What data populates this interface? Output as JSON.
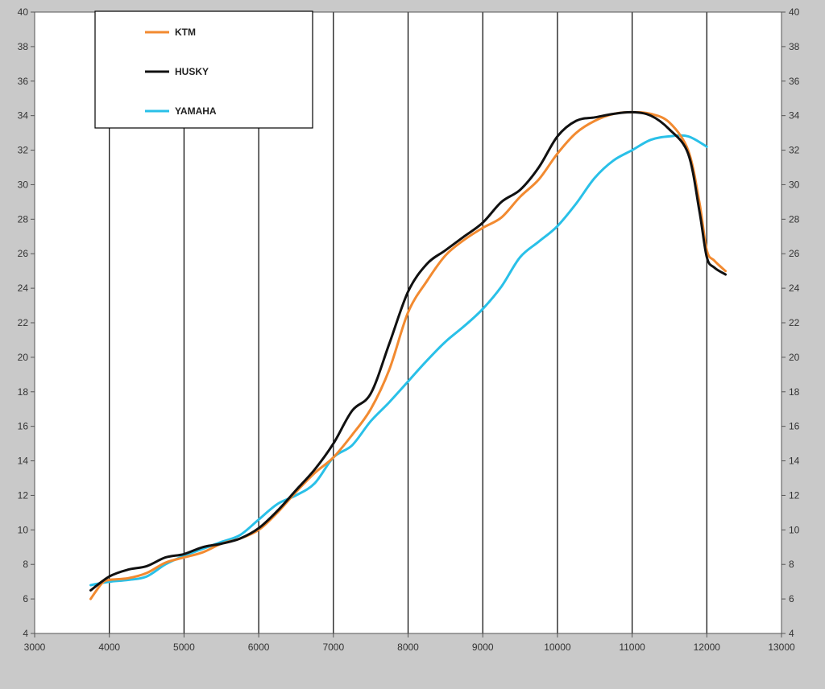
{
  "chart_data": {
    "type": "line",
    "title": "",
    "xlabel": "",
    "ylabel": "",
    "xlim": [
      3000,
      13000
    ],
    "ylim": [
      4,
      40
    ],
    "x_ticks": [
      3000,
      4000,
      5000,
      6000,
      7000,
      8000,
      9000,
      10000,
      11000,
      12000,
      13000
    ],
    "y_ticks": [
      4,
      6,
      8,
      10,
      12,
      14,
      16,
      18,
      20,
      22,
      24,
      26,
      28,
      30,
      32,
      34,
      36,
      38,
      40
    ],
    "x_ticks_labels": [
      "3000",
      "4000",
      "5000",
      "6000",
      "7000",
      "8000",
      "9000",
      "10000",
      "11000",
      "12000",
      "13000"
    ],
    "y_ticks_labels": [
      "4",
      "6",
      "8",
      "10",
      "12",
      "14",
      "16",
      "18",
      "20",
      "22",
      "24",
      "26",
      "28",
      "30",
      "32",
      "34",
      "36",
      "38",
      "40"
    ],
    "grid": "vertical",
    "legend_position": "top-left",
    "series": [
      {
        "name": "KTM",
        "color": "#f28a30",
        "points": [
          [
            3750,
            6.0
          ],
          [
            3900,
            6.9
          ],
          [
            4000,
            7.1
          ],
          [
            4250,
            7.2
          ],
          [
            4500,
            7.5
          ],
          [
            4750,
            8.1
          ],
          [
            5000,
            8.4
          ],
          [
            5250,
            8.7
          ],
          [
            5500,
            9.2
          ],
          [
            5750,
            9.5
          ],
          [
            6000,
            10.0
          ],
          [
            6250,
            11.0
          ],
          [
            6500,
            12.2
          ],
          [
            6750,
            13.3
          ],
          [
            7000,
            14.2
          ],
          [
            7250,
            15.5
          ],
          [
            7500,
            17.0
          ],
          [
            7750,
            19.3
          ],
          [
            8000,
            22.6
          ],
          [
            8250,
            24.4
          ],
          [
            8500,
            25.9
          ],
          [
            8750,
            26.8
          ],
          [
            9000,
            27.5
          ],
          [
            9250,
            28.1
          ],
          [
            9500,
            29.3
          ],
          [
            9750,
            30.3
          ],
          [
            10000,
            31.8
          ],
          [
            10250,
            33.0
          ],
          [
            10500,
            33.7
          ],
          [
            10750,
            34.1
          ],
          [
            11000,
            34.2
          ],
          [
            11250,
            34.1
          ],
          [
            11500,
            33.6
          ],
          [
            11750,
            32.0
          ],
          [
            11900,
            29.0
          ],
          [
            12000,
            26.2
          ],
          [
            12100,
            25.6
          ],
          [
            12250,
            25.0
          ]
        ]
      },
      {
        "name": "HUSKY",
        "color": "#111111",
        "points": [
          [
            3750,
            6.5
          ],
          [
            4000,
            7.3
          ],
          [
            4250,
            7.7
          ],
          [
            4500,
            7.9
          ],
          [
            4750,
            8.4
          ],
          [
            5000,
            8.6
          ],
          [
            5250,
            9.0
          ],
          [
            5500,
            9.2
          ],
          [
            5750,
            9.5
          ],
          [
            6000,
            10.1
          ],
          [
            6250,
            11.1
          ],
          [
            6500,
            12.3
          ],
          [
            6750,
            13.5
          ],
          [
            7000,
            15.0
          ],
          [
            7250,
            16.9
          ],
          [
            7500,
            17.9
          ],
          [
            7750,
            20.8
          ],
          [
            8000,
            23.8
          ],
          [
            8250,
            25.4
          ],
          [
            8500,
            26.2
          ],
          [
            8750,
            27.0
          ],
          [
            9000,
            27.8
          ],
          [
            9250,
            29.0
          ],
          [
            9500,
            29.7
          ],
          [
            9750,
            31.0
          ],
          [
            10000,
            32.8
          ],
          [
            10250,
            33.7
          ],
          [
            10500,
            33.9
          ],
          [
            10750,
            34.1
          ],
          [
            11000,
            34.2
          ],
          [
            11250,
            34.0
          ],
          [
            11500,
            33.2
          ],
          [
            11750,
            31.8
          ],
          [
            11900,
            28.5
          ],
          [
            12000,
            25.8
          ],
          [
            12100,
            25.2
          ],
          [
            12250,
            24.8
          ]
        ]
      },
      {
        "name": "YAMAHA",
        "color": "#29c0e8",
        "points": [
          [
            3750,
            6.8
          ],
          [
            4000,
            7.0
          ],
          [
            4250,
            7.1
          ],
          [
            4500,
            7.3
          ],
          [
            4750,
            8.0
          ],
          [
            5000,
            8.5
          ],
          [
            5250,
            8.9
          ],
          [
            5500,
            9.3
          ],
          [
            5750,
            9.7
          ],
          [
            6000,
            10.6
          ],
          [
            6250,
            11.5
          ],
          [
            6500,
            12.0
          ],
          [
            6750,
            12.7
          ],
          [
            7000,
            14.2
          ],
          [
            7250,
            14.9
          ],
          [
            7500,
            16.3
          ],
          [
            7750,
            17.4
          ],
          [
            8000,
            18.6
          ],
          [
            8250,
            19.8
          ],
          [
            8500,
            20.9
          ],
          [
            8750,
            21.8
          ],
          [
            9000,
            22.8
          ],
          [
            9250,
            24.1
          ],
          [
            9500,
            25.8
          ],
          [
            9750,
            26.7
          ],
          [
            10000,
            27.6
          ],
          [
            10250,
            28.9
          ],
          [
            10500,
            30.4
          ],
          [
            10750,
            31.4
          ],
          [
            11000,
            32.0
          ],
          [
            11250,
            32.6
          ],
          [
            11500,
            32.8
          ],
          [
            11750,
            32.8
          ],
          [
            12000,
            32.2
          ]
        ]
      }
    ]
  }
}
